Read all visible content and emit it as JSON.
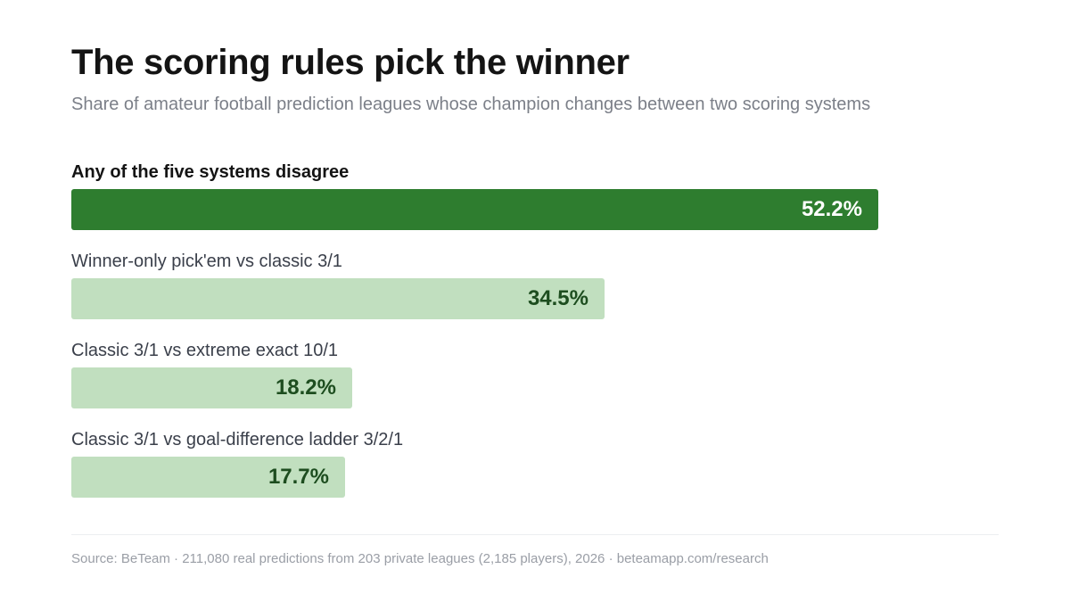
{
  "chart_data": {
    "type": "bar",
    "orientation": "horizontal",
    "title": "The scoring rules pick the winner",
    "subtitle": "Share of amateur football prediction leagues whose champion changes between two scoring systems",
    "categories": [
      "Any of the five systems disagree",
      "Winner-only pick'em vs classic 3/1",
      "Classic 3/1 vs extreme exact 10/1",
      "Classic 3/1 vs goal-difference ladder 3/2/1"
    ],
    "values": [
      52.2,
      34.5,
      18.2,
      17.7
    ],
    "value_labels": [
      "52.2%",
      "34.5%",
      "18.2%",
      "17.7%"
    ],
    "highlighted_index": 0,
    "xlim": [
      0,
      60
    ],
    "grid": false,
    "colors": {
      "highlight_bar": "#2e7d2f",
      "bar": "#c1dfbf",
      "highlight_value_text": "#ffffff",
      "value_text": "#1d4d1f"
    }
  },
  "footer": {
    "source": "Source: BeTeam · 211,080 real predictions from 203 private leagues (2,185 players), 2026 · beteamapp.com/research"
  }
}
